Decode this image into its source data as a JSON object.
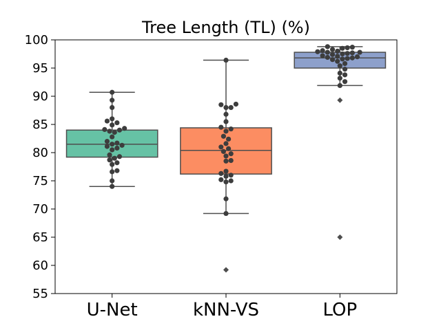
{
  "chart_data": {
    "type": "box",
    "title": "Tree Length (TL) (%)",
    "xlabel": "",
    "ylabel": "",
    "ylim": [
      55,
      100
    ],
    "yticks": [
      "55",
      "60",
      "65",
      "70",
      "75",
      "80",
      "85",
      "90",
      "95",
      "100"
    ],
    "grid": false,
    "categories": [
      "U-Net",
      "kNN-VS",
      "LOP"
    ],
    "series": [
      {
        "box_color": "#66c2a5",
        "box": {
          "whisker_low": 74.0,
          "q1": 79.2,
          "median": 81.5,
          "q3": 84.0,
          "whisker_high": 90.7
        },
        "outliers": [],
        "points": [
          90.7,
          89.3,
          88.0,
          86.0,
          85.6,
          85.3,
          84.9,
          84.3,
          84.1,
          84.0,
          83.8,
          83.6,
          82.8,
          82.0,
          81.7,
          81.5,
          81.3,
          81.1,
          80.8,
          80.5,
          79.6,
          79.3,
          79.0,
          78.7,
          78.2,
          77.9,
          76.8,
          76.6,
          75.0,
          74.0
        ]
      },
      {
        "box_color": "#fc8d62",
        "box": {
          "whisker_low": 69.2,
          "q1": 76.2,
          "median": 80.4,
          "q3": 84.4,
          "whisker_high": 96.4
        },
        "outliers": [
          59.2
        ],
        "points": [
          96.4,
          88.6,
          88.5,
          88.0,
          88.0,
          86.8,
          85.5,
          84.5,
          84.2,
          83.8,
          82.9,
          82.4,
          81.6,
          81.0,
          80.7,
          80.2,
          79.8,
          79.4,
          78.6,
          78.5,
          76.7,
          76.3,
          76.0,
          75.8,
          75.2,
          75.0,
          74.8,
          71.8,
          69.2
        ]
      },
      {
        "box_color": "#8da0cb",
        "box": {
          "whisker_low": 91.9,
          "q1": 95.0,
          "median": 96.8,
          "q3": 97.8,
          "whisker_high": 98.8
        },
        "outliers": [
          89.3,
          65.0
        ],
        "points": [
          98.8,
          98.7,
          98.6,
          98.5,
          98.3,
          98.1,
          98.0,
          97.9,
          97.8,
          97.8,
          97.7,
          97.6,
          97.5,
          97.4,
          97.2,
          97.1,
          97.0,
          96.9,
          96.8,
          96.7,
          96.6,
          96.5,
          96.2,
          95.8,
          95.4,
          94.8,
          94.1,
          93.8,
          93.2,
          92.6,
          91.9
        ]
      }
    ]
  }
}
